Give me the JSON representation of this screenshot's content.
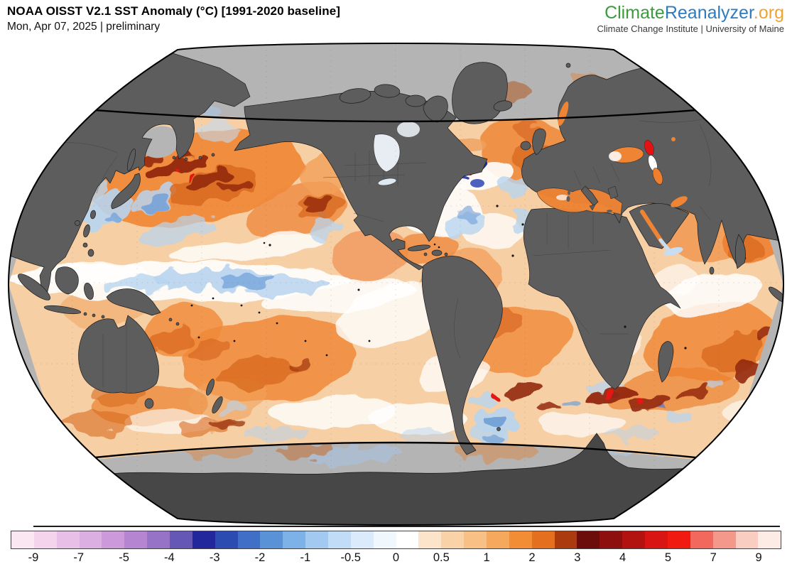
{
  "header": {
    "title": "NOAA OISST V2.1 SST Anomaly (°C) [1991-2020 baseline]",
    "subtitle": "Mon, Apr 07, 2025 | preliminary"
  },
  "logo": {
    "part1": "Climate",
    "part2": "Reanalyzer",
    "part3": ".org",
    "tagline": "Climate Change Institute | University of Maine",
    "color1": "#3d9a3d",
    "color2": "#2e7cbf",
    "color3": "#f0a330"
  },
  "map": {
    "land_color": "#5d5d5d",
    "antarctica_color": "#474747",
    "no_data_color": "#b4b4b4",
    "outline_color": "#000000",
    "ocean_base_color": "#f6cfa5"
  },
  "chart_data": {
    "type": "heatmap",
    "title": "NOAA OISST V2.1 SST Anomaly (°C) [1991-2020 baseline]",
    "date": "Mon, Apr 07, 2025",
    "status": "preliminary",
    "units": "°C",
    "legend_position": "bottom",
    "colorbar": {
      "orientation": "horizontal",
      "tick_labels": [
        "-9",
        "-7",
        "-5",
        "-4",
        "-3",
        "-2",
        "-1",
        "-0.5",
        "0",
        "0.5",
        "1",
        "2",
        "3",
        "4",
        "5",
        "7",
        "9"
      ],
      "boundaries": [
        -10,
        -9,
        -8,
        -7,
        -6,
        -5,
        -4.5,
        -4,
        -3.5,
        -3,
        -2.5,
        -2,
        -1.5,
        -1,
        -0.75,
        -0.5,
        -0.25,
        0,
        0.25,
        0.5,
        0.75,
        1,
        1.5,
        2,
        2.5,
        3,
        3.5,
        4,
        4.5,
        5,
        6,
        7,
        8,
        9,
        10
      ],
      "segments": [
        {
          "range": [
            -10,
            -9
          ],
          "color": "#fbe7f1"
        },
        {
          "range": [
            -9,
            -8
          ],
          "color": "#f4d3ed"
        },
        {
          "range": [
            -8,
            -7
          ],
          "color": "#e8c0e7"
        },
        {
          "range": [
            -7,
            -6
          ],
          "color": "#dbafe2"
        },
        {
          "range": [
            -6,
            -5
          ],
          "color": "#cc99db"
        },
        {
          "range": [
            -5,
            -4.5
          ],
          "color": "#b685d2"
        },
        {
          "range": [
            -4.5,
            -4
          ],
          "color": "#9673c6"
        },
        {
          "range": [
            -4,
            -3.5
          ],
          "color": "#6457b5"
        },
        {
          "range": [
            -3.5,
            -3
          ],
          "color": "#23279c"
        },
        {
          "range": [
            -3,
            -2.5
          ],
          "color": "#2c4cb1"
        },
        {
          "range": [
            -2.5,
            -2
          ],
          "color": "#3f6fc6"
        },
        {
          "range": [
            -2,
            -1.5
          ],
          "color": "#5a92d8"
        },
        {
          "range": [
            -1.5,
            -1
          ],
          "color": "#7db2e9"
        },
        {
          "range": [
            -1,
            -0.75
          ],
          "color": "#a2caf1"
        },
        {
          "range": [
            -0.75,
            -0.5
          ],
          "color": "#c1dcf7"
        },
        {
          "range": [
            -0.5,
            -0.25
          ],
          "color": "#dcebfb"
        },
        {
          "range": [
            -0.25,
            0
          ],
          "color": "#f0f7fd"
        },
        {
          "range": [
            0,
            0.25
          ],
          "color": "#ffffff"
        },
        {
          "range": [
            0.25,
            0.5
          ],
          "color": "#fce4ca"
        },
        {
          "range": [
            0.5,
            0.75
          ],
          "color": "#fad2a7"
        },
        {
          "range": [
            0.75,
            1
          ],
          "color": "#f8c084"
        },
        {
          "range": [
            1,
            1.5
          ],
          "color": "#f6a85c"
        },
        {
          "range": [
            1.5,
            2
          ],
          "color": "#f28d36"
        },
        {
          "range": [
            2,
            2.5
          ],
          "color": "#e36f1f"
        },
        {
          "range": [
            2.5,
            3
          ],
          "color": "#ab3a0f"
        },
        {
          "range": [
            3,
            3.5
          ],
          "color": "#6d0d0b"
        },
        {
          "range": [
            3.5,
            4
          ],
          "color": "#8e100e"
        },
        {
          "range": [
            4,
            4.5
          ],
          "color": "#b21311"
        },
        {
          "range": [
            4.5,
            5
          ],
          "color": "#d81512"
        },
        {
          "range": [
            5,
            6
          ],
          "color": "#f01a10"
        },
        {
          "range": [
            6,
            7
          ],
          "color": "#f3685d"
        },
        {
          "range": [
            7,
            8
          ],
          "color": "#f5988c"
        },
        {
          "range": [
            8,
            9
          ],
          "color": "#f9cdc1"
        },
        {
          "range": [
            9,
            10
          ],
          "color": "#fdece6"
        }
      ]
    }
  }
}
